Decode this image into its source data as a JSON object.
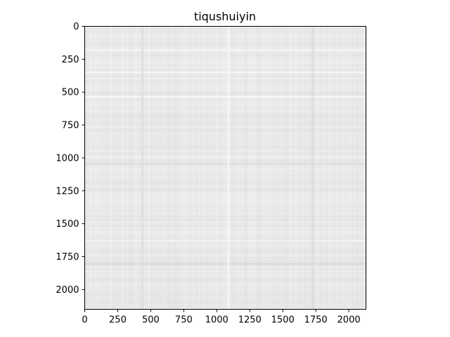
{
  "chart_data": {
    "type": "heatmap",
    "title": "tiqushuiyin",
    "xlabel": "",
    "ylabel": "",
    "xlim": [
      0,
      2130
    ],
    "ylim": [
      2150,
      0
    ],
    "x_ticks": [
      0,
      250,
      500,
      750,
      1000,
      1250,
      1500,
      1750,
      2000
    ],
    "y_ticks": [
      0,
      250,
      500,
      750,
      1000,
      1250,
      1500,
      1750,
      2000
    ],
    "colormap": "gray",
    "value_range": [
      0.86,
      0.96
    ],
    "texture": "fine grayscale noise with faint horizontal and vertical streaks",
    "light_rows": [
      180,
      345,
      530,
      1625
    ],
    "dark_rows": [
      1040,
      1800
    ],
    "dark_columns": [
      430,
      1720
    ],
    "light_columns": [
      1080
    ],
    "grid": false,
    "legend": "none"
  },
  "colors": {
    "axis": "#000000",
    "background": "#ffffff",
    "cell_base": "#ececec"
  }
}
